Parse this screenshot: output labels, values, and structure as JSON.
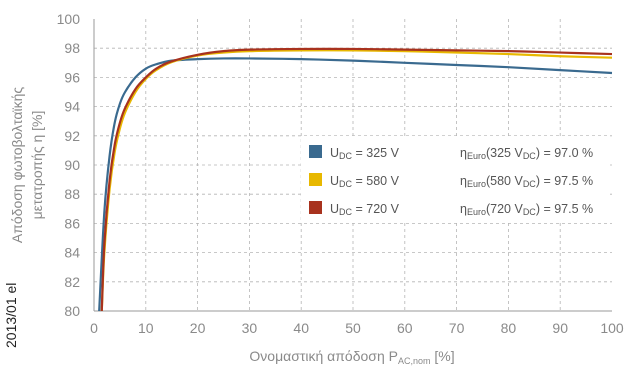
{
  "chart_data": {
    "type": "line",
    "xlim": [
      0,
      100
    ],
    "ylim": [
      80,
      100
    ],
    "x_ticks": [
      "0",
      "10",
      "20",
      "30",
      "40",
      "50",
      "60",
      "70",
      "80",
      "90",
      "100"
    ],
    "y_ticks": [
      "80",
      "82",
      "84",
      "86",
      "88",
      "90",
      "92",
      "94",
      "96",
      "98",
      "100"
    ],
    "xlabel": "Ονομαστική απόδοση P",
    "xlabel_sub": "AC,nom",
    "xlabel_unit": " [%]",
    "ylabel_line1": "Απόδοση φωτοβολταϊκής",
    "ylabel_line2": "μετατροπής η [%]",
    "grid": true,
    "side_code": "2013/01 el",
    "series": [
      {
        "name_main": "U",
        "name_sub": "DC",
        "name_value": " = 325 V",
        "color": "#3a6a8f",
        "x": [
          1,
          2,
          3,
          4,
          5,
          6,
          8,
          10,
          12,
          15,
          20,
          25,
          30,
          40,
          50,
          60,
          70,
          80,
          90,
          100
        ],
        "y": [
          80.0,
          86.8,
          90.6,
          92.9,
          94.2,
          95.0,
          96.0,
          96.6,
          96.9,
          97.15,
          97.25,
          97.3,
          97.3,
          97.25,
          97.15,
          97.0,
          96.85,
          96.7,
          96.5,
          96.3
        ]
      },
      {
        "name_main": "U",
        "name_sub": "DC",
        "name_value": " = 580 V",
        "color": "#e8b800",
        "x": [
          1.5,
          2,
          3,
          4,
          5,
          6,
          8,
          10,
          12,
          15,
          20,
          25,
          30,
          40,
          50,
          60,
          70,
          80,
          90,
          100
        ],
        "y": [
          80.0,
          84.0,
          88.3,
          90.9,
          92.5,
          93.6,
          95.0,
          95.9,
          96.5,
          97.05,
          97.5,
          97.7,
          97.8,
          97.85,
          97.85,
          97.8,
          97.7,
          97.6,
          97.45,
          97.35
        ]
      },
      {
        "name_main": "U",
        "name_sub": "DC",
        "name_value": " = 720 V",
        "color": "#a8321e",
        "x": [
          1.5,
          2,
          3,
          4,
          5,
          6,
          8,
          10,
          12,
          15,
          20,
          25,
          30,
          40,
          50,
          60,
          70,
          80,
          90,
          100
        ],
        "y": [
          80.0,
          84.6,
          88.9,
          91.4,
          92.9,
          93.9,
          95.2,
          96.0,
          96.6,
          97.1,
          97.55,
          97.8,
          97.9,
          97.95,
          97.95,
          97.9,
          97.85,
          97.8,
          97.7,
          97.6
        ]
      }
    ],
    "euro_labels": [
      {
        "eta": "η",
        "sub": "Euro",
        "mid": "(325 V",
        "sub2": "DC",
        "end": ") = 97.0 %"
      },
      {
        "eta": "η",
        "sub": "Euro",
        "mid": "(580 V",
        "sub2": "DC",
        "end": ") = 97.5 %"
      },
      {
        "eta": "η",
        "sub": "Euro",
        "mid": "(720 V",
        "sub2": "DC",
        "end": ") = 97.5 %"
      }
    ]
  }
}
